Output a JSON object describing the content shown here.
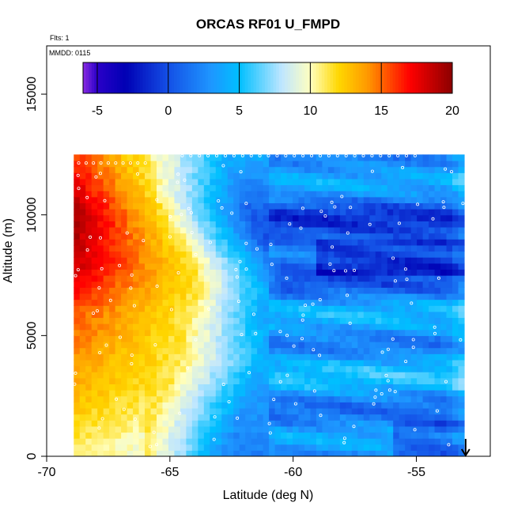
{
  "chart_data": {
    "type": "heatmap",
    "title": "ORCAS RF01 U_FMPD",
    "annotations": [
      "Flts: 1",
      "MMDD: 0115"
    ],
    "xlabel": "Latitude (deg N)",
    "ylabel": "Altitude (m)",
    "xlim": [
      -70,
      -52
    ],
    "ylim": [
      0,
      17000
    ],
    "x_ticks": [
      -70,
      -65,
      -60,
      -55
    ],
    "y_ticks": [
      0,
      5000,
      10000,
      15000
    ],
    "colorbar": {
      "range": [
        -6,
        20
      ],
      "ticks": [
        -5,
        0,
        5,
        10,
        15,
        20
      ],
      "stops": [
        {
          "value": -6,
          "color": "#8a2be2"
        },
        {
          "value": -5,
          "color": "#2a00c8"
        },
        {
          "value": -3,
          "color": "#0000b4"
        },
        {
          "value": 0,
          "color": "#1450e6"
        },
        {
          "value": 3,
          "color": "#1e96ff"
        },
        {
          "value": 5,
          "color": "#00bfff"
        },
        {
          "value": 8,
          "color": "#bfe6ff"
        },
        {
          "value": 10,
          "color": "#ffffc0"
        },
        {
          "value": 12,
          "color": "#ffd700"
        },
        {
          "value": 14,
          "color": "#ff9a00"
        },
        {
          "value": 17,
          "color": "#ff0000"
        },
        {
          "value": 20,
          "color": "#8b0000"
        }
      ]
    },
    "profile": {
      "altitude": [
        0,
        2000,
        4000,
        6000,
        7000,
        8000,
        9000,
        10000,
        11000,
        12500
      ],
      "jet_latitude_max": [
        -66.0,
        -65.5,
        -64.5,
        -64.2,
        -63.8,
        -64.0,
        -64.6,
        -65.2,
        -65.6,
        -66.0
      ],
      "jet_peak_value": [
        12,
        13,
        14,
        15.5,
        17,
        18.5,
        19,
        19.5,
        18,
        16
      ],
      "east_value": [
        2,
        3,
        4,
        3,
        2,
        1,
        0,
        0.5,
        2,
        4
      ]
    },
    "data_extent": {
      "lat_min": -68.9,
      "lat_max": -53.1,
      "alt_max_west": 12300,
      "alt_max_east": 12500,
      "step_latitude": -64.8
    },
    "marker_arrow": {
      "latitude": -53.0,
      "direction": "down"
    }
  }
}
